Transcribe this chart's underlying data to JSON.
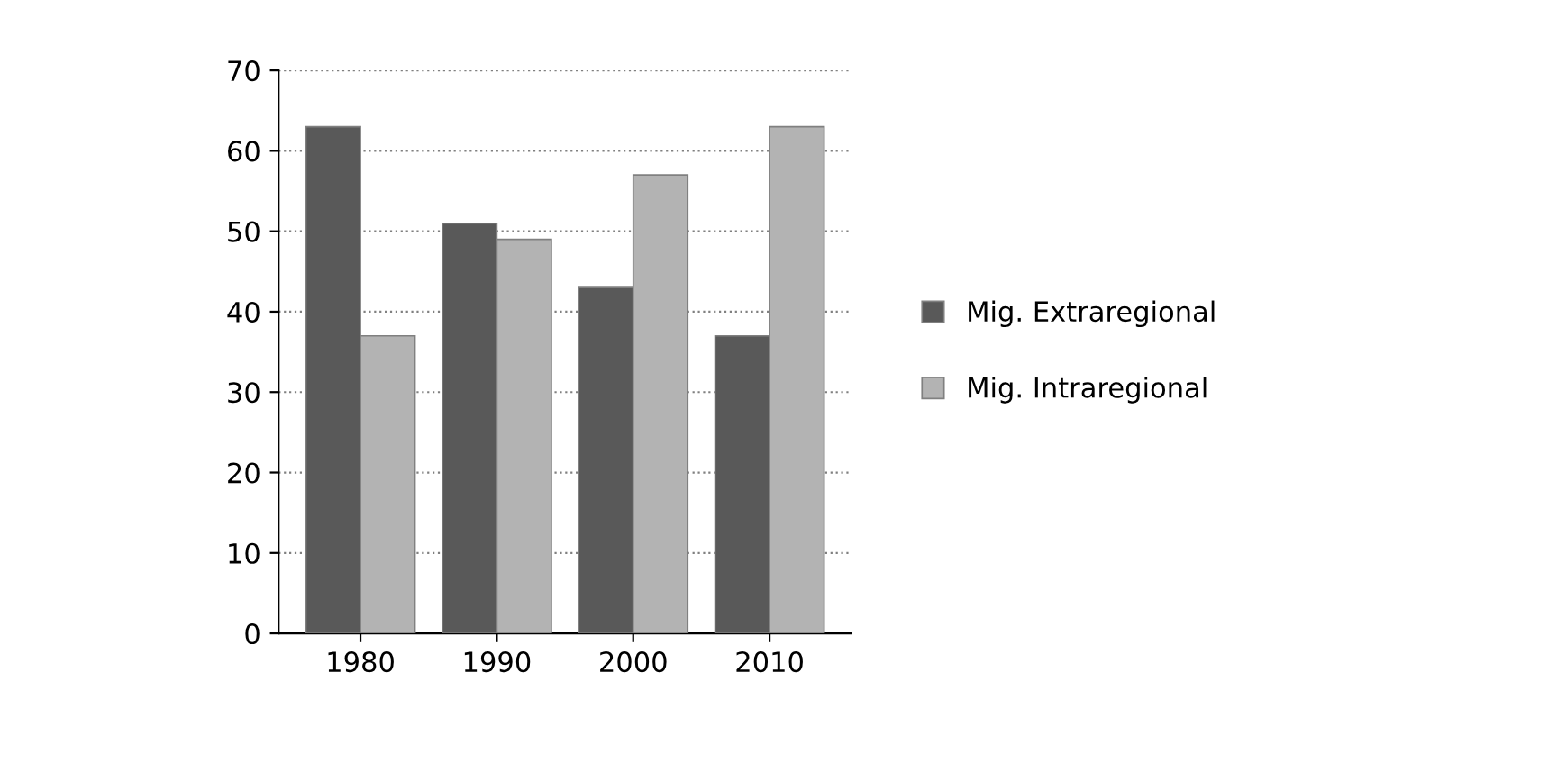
{
  "chart_data": {
    "type": "bar",
    "categories": [
      "1980",
      "1990",
      "2000",
      "2010"
    ],
    "series": [
      {
        "name": "Mig. Extraregional",
        "color": "#595959",
        "values": [
          63,
          51,
          43,
          37
        ]
      },
      {
        "name": "Mig. Intraregional",
        "color": "#b3b3b3",
        "values": [
          37,
          49,
          57,
          63
        ]
      }
    ],
    "ylim": [
      0,
      70
    ],
    "yticks": [
      0,
      10,
      20,
      30,
      40,
      50,
      60,
      70
    ],
    "grid": "y",
    "legend": "right"
  }
}
